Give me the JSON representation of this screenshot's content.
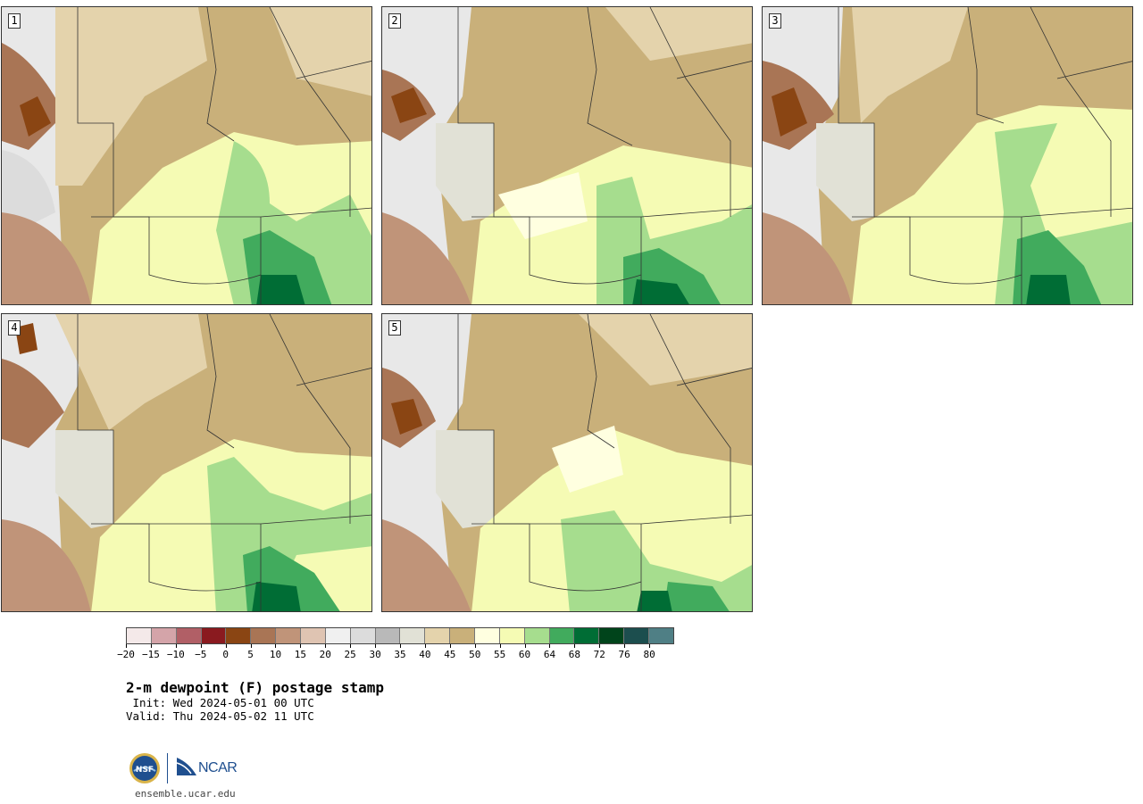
{
  "panels": [
    {
      "label": "1"
    },
    {
      "label": "2"
    },
    {
      "label": "3"
    },
    {
      "label": "4"
    },
    {
      "label": "5"
    }
  ],
  "colorbar": {
    "colors": [
      "#f4e9e9",
      "#d4a4a9",
      "#b15f66",
      "#8a1a1f",
      "#8a4513",
      "#a97555",
      "#c09479",
      "#dfc4b2",
      "#f0f0f0",
      "#dcdcdc",
      "#b9b9b9",
      "#e1e1d6",
      "#e4d3ac",
      "#c9b07a",
      "#ffffe0",
      "#f5fbb4",
      "#a6dd8e",
      "#41ab5d",
      "#006d35",
      "#00441b",
      "#1c4e4e",
      "#4f7f85"
    ],
    "tick_labels": [
      "-20",
      "-15",
      "-10",
      "-5",
      "0",
      "5",
      "10",
      "15",
      "20",
      "25",
      "30",
      "35",
      "40",
      "45",
      "50",
      "55",
      "60",
      "64",
      "68",
      "72",
      "76",
      "80"
    ]
  },
  "title": "2-m dewpoint (F) postage stamp",
  "init_text": " Init: Wed 2024-05-01 00 UTC",
  "valid_text": "Valid: Thu 2024-05-02 11 UTC",
  "logos": {
    "nsf": "NSF",
    "ncar": "NCAR"
  },
  "website": "ensemble.ucar.edu"
}
